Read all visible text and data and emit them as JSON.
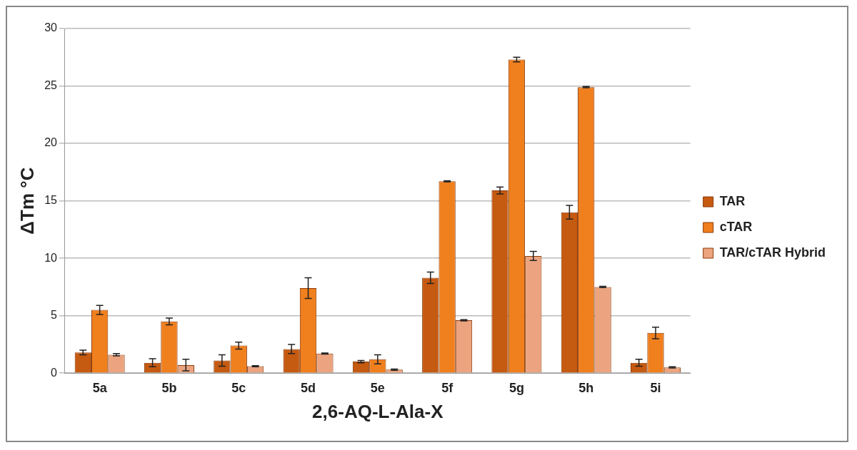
{
  "chart_data": {
    "type": "bar",
    "xlabel": "2,6-AQ-L-Ala-X",
    "ylabel": "ΔTm °C",
    "categories": [
      "5a",
      "5b",
      "5c",
      "5d",
      "5e",
      "5f",
      "5g",
      "5h",
      "5i"
    ],
    "series": [
      {
        "name": "TAR",
        "color": "#c55a11",
        "values": [
          1.8,
          0.9,
          1.1,
          2.1,
          1.0,
          8.3,
          15.9,
          14.0,
          0.9
        ],
        "errors": [
          0.2,
          0.35,
          0.5,
          0.4,
          0.1,
          0.5,
          0.3,
          0.6,
          0.3
        ]
      },
      {
        "name": "cTAR",
        "color": "#f07f1e",
        "values": [
          5.5,
          4.5,
          2.4,
          7.4,
          1.2,
          16.7,
          27.3,
          24.9,
          3.5
        ],
        "errors": [
          0.4,
          0.3,
          0.3,
          0.9,
          0.4,
          0.05,
          0.2,
          0.05,
          0.5
        ]
      },
      {
        "name": "TAR/cTAR Hybrid",
        "color": "#eba47f",
        "values": [
          1.6,
          0.7,
          0.6,
          1.7,
          0.3,
          4.6,
          10.2,
          7.5,
          0.5
        ],
        "errors": [
          0.1,
          0.5,
          0.05,
          0.05,
          0.05,
          0.05,
          0.4,
          0.05,
          0.05
        ]
      }
    ],
    "ylim": [
      0,
      30
    ],
    "yticks": [
      0,
      5,
      10,
      15,
      20,
      25,
      30
    ],
    "grid": "y",
    "legend": "right"
  }
}
